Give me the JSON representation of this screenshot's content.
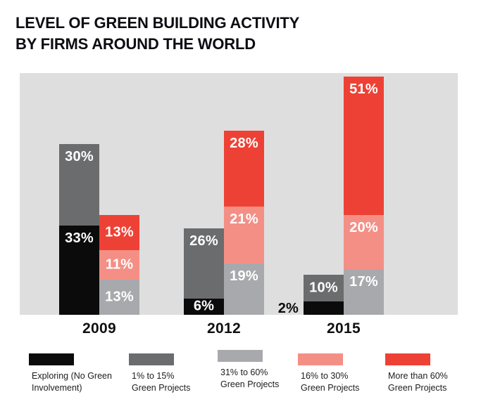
{
  "chart_data": {
    "type": "bar",
    "variant": "grouped-stacked",
    "title": "LEVEL OF GREEN BUILDING ACTIVITY BY FIRMS AROUND THE WORLD",
    "title_lines": [
      "LEVEL OF GREEN BUILDING ACTIVITY",
      "BY FIRMS AROUND THE WORLD"
    ],
    "unit": "percent",
    "label_format": "{value}%",
    "categories": [
      "2009",
      "2012",
      "2015"
    ],
    "series": [
      {
        "name": "Exploring (No Green Involvement)",
        "legend_lines": [
          "Exploring (No Green",
          "Involvement)"
        ],
        "color": "#0b0b0b",
        "stack": "left",
        "values": [
          33,
          6,
          2
        ]
      },
      {
        "name": "1% to 15% Green Projects",
        "legend_lines": [
          "1% to 15%",
          "Green Projects"
        ],
        "color": "#6b6c6e",
        "stack": "left",
        "values": [
          30,
          26,
          10
        ]
      },
      {
        "name": "31% to 60% Green Projects",
        "legend_lines": [
          "31% to 60%",
          "Green Projects"
        ],
        "color": "#a8a9ad",
        "stack": "right",
        "values": [
          13,
          19,
          17
        ]
      },
      {
        "name": "16% to 30% Green Projects",
        "legend_lines": [
          "16% to 30%",
          "Green Projects"
        ],
        "color": "#f48f86",
        "stack": "right",
        "values": [
          11,
          21,
          20
        ]
      },
      {
        "name": "More than 60% Green Projects",
        "legend_lines": [
          "More than 60%",
          "Green Projects"
        ],
        "color": "#ee4135",
        "stack": "right",
        "values": [
          13,
          28,
          51
        ]
      }
    ],
    "legend_position": "bottom",
    "plot_background": "#dedede",
    "grid": "off",
    "value_labels_color": "#ffffff",
    "outside_label_color": "#0b0b0b"
  }
}
